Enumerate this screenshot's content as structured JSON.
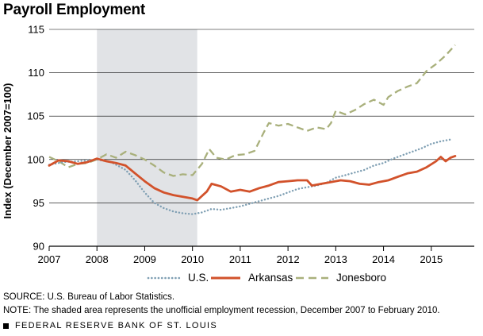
{
  "title": "Payroll Employment",
  "source": "SOURCE: U.S. Bureau of Labor Statistics.",
  "note": "NOTE: The shaded area represents the unofficial employment recession, December 2007 to February 2010.",
  "footer": "FEDERAL RESERVE BANK OF ST. LOUIS",
  "colors": {
    "us": "#7f9fb3",
    "arkansas": "#d2522b",
    "jonesboro": "#a9b07c",
    "recession": "#e1e3e6",
    "axis": "#000000"
  },
  "chart_data": {
    "type": "line",
    "title": "Payroll Employment",
    "xlabel": "",
    "ylabel": "Index (December 2007=100)",
    "xlim": [
      2007,
      2015.9
    ],
    "ylim": [
      90,
      115
    ],
    "x_ticks": [
      "2007",
      "2008",
      "2009",
      "2010",
      "2011",
      "2012",
      "2013",
      "2014",
      "2015"
    ],
    "y_ticks": [
      "90",
      "95",
      "100",
      "105",
      "110",
      "115"
    ],
    "grid": "horizontal",
    "legend": "bottom",
    "shaded_region": {
      "label": "recession",
      "x": [
        2008.0,
        2010.1
      ]
    },
    "series": [
      {
        "name": "U.S.",
        "style": "dotted",
        "points": [
          [
            2007.0,
            99.4
          ],
          [
            2007.3,
            99.7
          ],
          [
            2007.6,
            99.8
          ],
          [
            2008.0,
            100.0
          ],
          [
            2008.3,
            99.7
          ],
          [
            2008.6,
            98.8
          ],
          [
            2008.8,
            97.6
          ],
          [
            2009.0,
            96.2
          ],
          [
            2009.2,
            95.0
          ],
          [
            2009.4,
            94.4
          ],
          [
            2009.6,
            94.0
          ],
          [
            2009.8,
            93.8
          ],
          [
            2010.0,
            93.7
          ],
          [
            2010.2,
            93.9
          ],
          [
            2010.4,
            94.3
          ],
          [
            2010.6,
            94.2
          ],
          [
            2010.8,
            94.4
          ],
          [
            2011.0,
            94.6
          ],
          [
            2011.2,
            94.9
          ],
          [
            2011.4,
            95.2
          ],
          [
            2011.6,
            95.5
          ],
          [
            2011.8,
            95.8
          ],
          [
            2012.0,
            96.2
          ],
          [
            2012.2,
            96.6
          ],
          [
            2012.4,
            96.8
          ],
          [
            2012.6,
            97.0
          ],
          [
            2012.8,
            97.3
          ],
          [
            2013.0,
            97.9
          ],
          [
            2013.2,
            98.2
          ],
          [
            2013.4,
            98.5
          ],
          [
            2013.6,
            98.8
          ],
          [
            2013.8,
            99.3
          ],
          [
            2014.0,
            99.6
          ],
          [
            2014.2,
            100.1
          ],
          [
            2014.4,
            100.5
          ],
          [
            2014.6,
            100.9
          ],
          [
            2014.8,
            101.3
          ],
          [
            2015.0,
            101.8
          ],
          [
            2015.2,
            102.1
          ],
          [
            2015.4,
            102.3
          ]
        ]
      },
      {
        "name": "Arkansas",
        "style": "solid",
        "points": [
          [
            2007.0,
            99.3
          ],
          [
            2007.2,
            99.9
          ],
          [
            2007.4,
            99.8
          ],
          [
            2007.6,
            99.5
          ],
          [
            2007.8,
            99.7
          ],
          [
            2008.0,
            100.1
          ],
          [
            2008.2,
            99.8
          ],
          [
            2008.4,
            99.6
          ],
          [
            2008.6,
            99.3
          ],
          [
            2008.8,
            98.4
          ],
          [
            2009.0,
            97.5
          ],
          [
            2009.2,
            96.7
          ],
          [
            2009.4,
            96.2
          ],
          [
            2009.6,
            95.9
          ],
          [
            2009.8,
            95.7
          ],
          [
            2010.0,
            95.5
          ],
          [
            2010.1,
            95.3
          ],
          [
            2010.3,
            96.3
          ],
          [
            2010.4,
            97.2
          ],
          [
            2010.6,
            96.9
          ],
          [
            2010.8,
            96.3
          ],
          [
            2011.0,
            96.5
          ],
          [
            2011.2,
            96.3
          ],
          [
            2011.4,
            96.7
          ],
          [
            2011.6,
            97.0
          ],
          [
            2011.8,
            97.4
          ],
          [
            2012.0,
            97.5
          ],
          [
            2012.2,
            97.6
          ],
          [
            2012.4,
            97.6
          ],
          [
            2012.5,
            97.0
          ],
          [
            2012.7,
            97.2
          ],
          [
            2012.9,
            97.4
          ],
          [
            2013.1,
            97.6
          ],
          [
            2013.3,
            97.5
          ],
          [
            2013.5,
            97.2
          ],
          [
            2013.7,
            97.1
          ],
          [
            2013.9,
            97.4
          ],
          [
            2014.1,
            97.6
          ],
          [
            2014.3,
            98.0
          ],
          [
            2014.5,
            98.4
          ],
          [
            2014.7,
            98.6
          ],
          [
            2014.9,
            99.1
          ],
          [
            2015.1,
            99.8
          ],
          [
            2015.2,
            100.3
          ],
          [
            2015.3,
            99.8
          ],
          [
            2015.4,
            100.2
          ],
          [
            2015.5,
            100.4
          ]
        ]
      },
      {
        "name": "Jonesboro",
        "style": "dashed",
        "points": [
          [
            2007.0,
            100.3
          ],
          [
            2007.2,
            99.8
          ],
          [
            2007.4,
            99.1
          ],
          [
            2007.6,
            99.5
          ],
          [
            2007.8,
            99.6
          ],
          [
            2008.0,
            100.0
          ],
          [
            2008.2,
            100.6
          ],
          [
            2008.4,
            100.2
          ],
          [
            2008.6,
            100.9
          ],
          [
            2008.8,
            100.5
          ],
          [
            2009.0,
            100.0
          ],
          [
            2009.2,
            99.3
          ],
          [
            2009.4,
            98.5
          ],
          [
            2009.6,
            98.1
          ],
          [
            2009.8,
            98.3
          ],
          [
            2010.0,
            98.2
          ],
          [
            2010.2,
            99.5
          ],
          [
            2010.35,
            101.2
          ],
          [
            2010.5,
            100.2
          ],
          [
            2010.7,
            100.0
          ],
          [
            2010.9,
            100.5
          ],
          [
            2011.1,
            100.6
          ],
          [
            2011.3,
            101.0
          ],
          [
            2011.5,
            103.2
          ],
          [
            2011.6,
            104.2
          ],
          [
            2011.8,
            103.9
          ],
          [
            2012.0,
            104.1
          ],
          [
            2012.2,
            103.7
          ],
          [
            2012.4,
            103.3
          ],
          [
            2012.6,
            103.7
          ],
          [
            2012.8,
            103.5
          ],
          [
            2012.9,
            104.2
          ],
          [
            2013.0,
            105.6
          ],
          [
            2013.2,
            105.2
          ],
          [
            2013.4,
            105.7
          ],
          [
            2013.6,
            106.4
          ],
          [
            2013.8,
            106.9
          ],
          [
            2014.0,
            106.3
          ],
          [
            2014.1,
            107.2
          ],
          [
            2014.3,
            107.9
          ],
          [
            2014.5,
            108.4
          ],
          [
            2014.7,
            108.8
          ],
          [
            2014.9,
            110.2
          ],
          [
            2015.1,
            111.0
          ],
          [
            2015.3,
            112.0
          ],
          [
            2015.5,
            113.2
          ]
        ]
      }
    ]
  }
}
